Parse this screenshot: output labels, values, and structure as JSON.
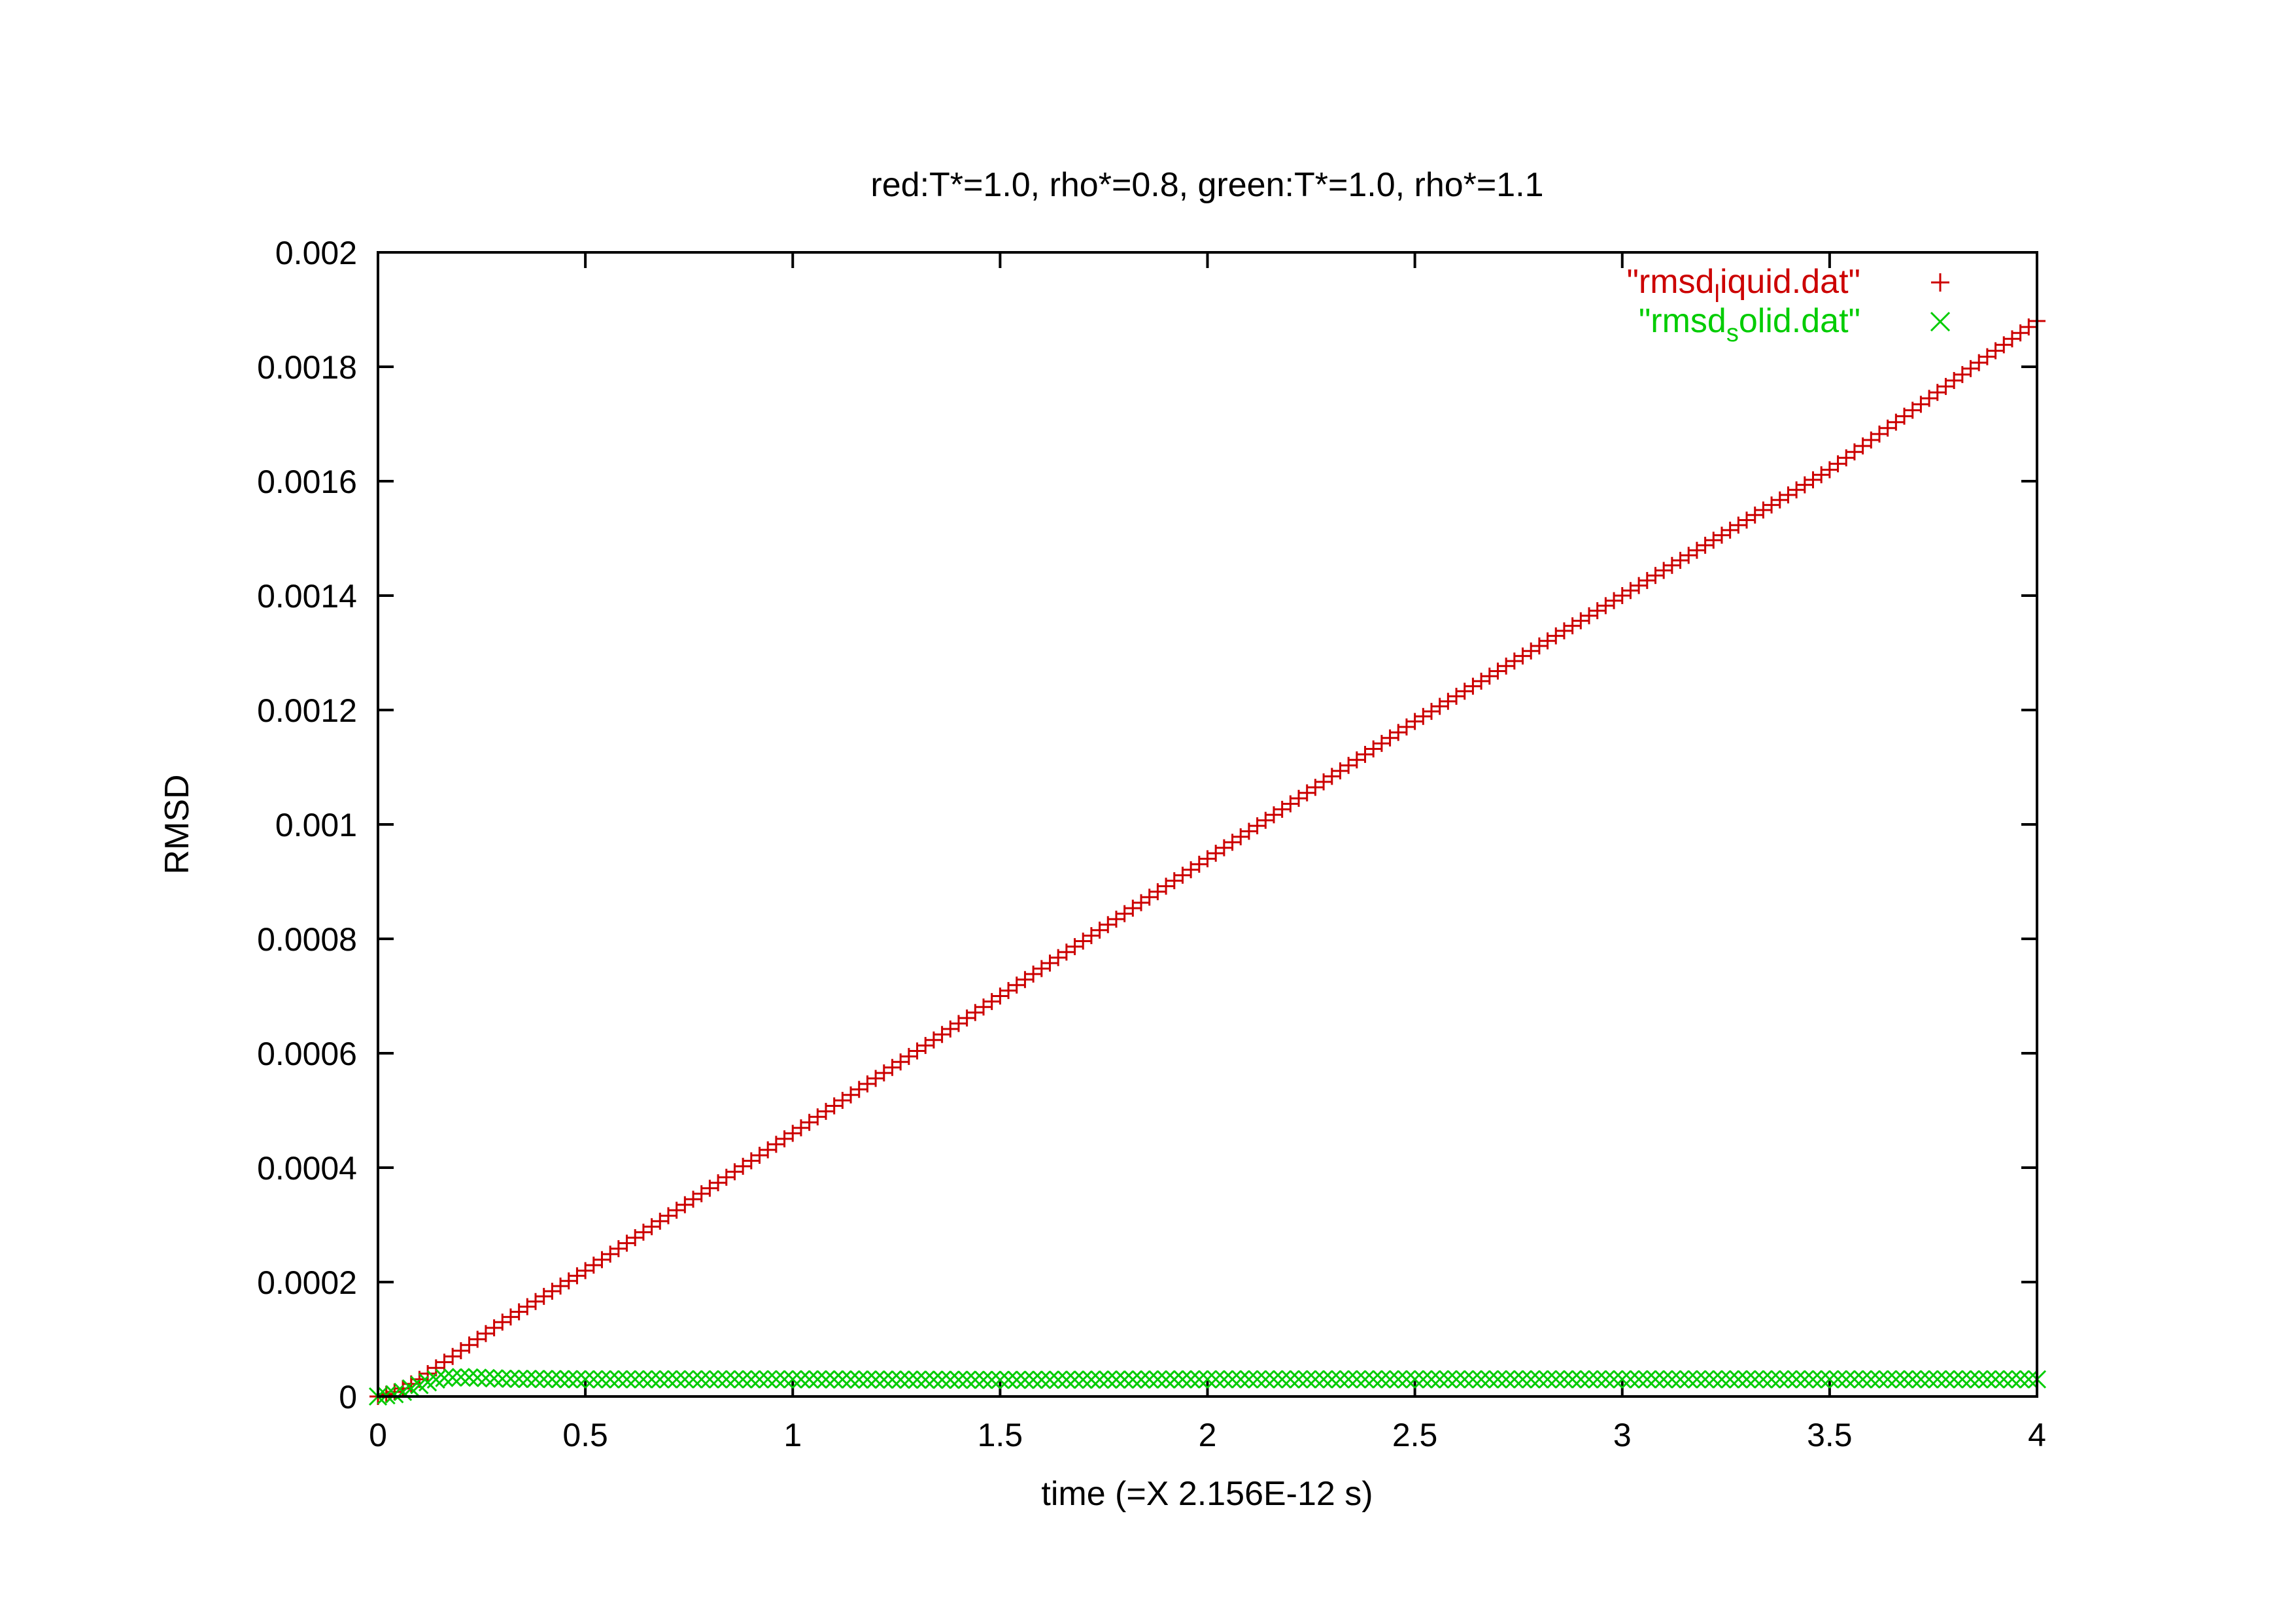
{
  "chart_data": {
    "type": "scatter",
    "title": "red:T*=1.0, rho*=0.8, green:T*=1.0, rho*=1.1",
    "xlabel": "time (=X 2.156E-12 s)",
    "ylabel": "RMSD",
    "xlim": [
      0,
      4
    ],
    "ylim": [
      0,
      0.002
    ],
    "x_ticks": [
      "0",
      "0.5",
      "1",
      "1.5",
      "2",
      "2.5",
      "3",
      "3.5",
      "4"
    ],
    "y_ticks": [
      "0",
      "0.0002",
      "0.0004",
      "0.0006",
      "0.0008",
      "0.001",
      "0.0012",
      "0.0014",
      "0.0016",
      "0.0018",
      "0.002"
    ],
    "grid": false,
    "legend_position": "top-right",
    "series": [
      {
        "name": "\"rmsd_liquid.dat\"",
        "legend_prefix": "\"rmsd",
        "legend_sub": "l",
        "legend_suffix": "iquid.dat\"",
        "color": "#cc0000",
        "marker": "plus",
        "x": [
          0,
          0.05,
          0.1,
          0.2,
          0.3,
          0.5,
          0.75,
          1.0,
          1.25,
          1.5,
          1.75,
          2.0,
          2.25,
          2.5,
          2.75,
          3.0,
          3.25,
          3.5,
          3.75,
          4.0
        ],
        "values": [
          0,
          1e-05,
          3e-05,
          8e-05,
          0.00013,
          0.00022,
          0.00034,
          0.00046,
          0.00058,
          0.0007,
          0.00082,
          0.00094,
          0.00106,
          0.00118,
          0.00129,
          0.0014,
          0.00151,
          0.00162,
          0.00175,
          0.00188
        ]
      },
      {
        "name": "\"rmsd_solid.dat\"",
        "legend_prefix": "\"rmsd",
        "legend_sub": "s",
        "legend_suffix": "olid.dat\"",
        "color": "#00cc00",
        "marker": "cross",
        "x": [
          0,
          0.05,
          0.1,
          0.15,
          0.2,
          0.3,
          0.5,
          1.0,
          1.5,
          2.0,
          2.5,
          3.0,
          3.5,
          4.0
        ],
        "values": [
          0,
          5e-06,
          2e-05,
          3.2e-05,
          3.4e-05,
          3.1e-05,
          3e-05,
          3e-05,
          2.9e-05,
          3e-05,
          3e-05,
          3e-05,
          3e-05,
          3e-05
        ]
      }
    ]
  }
}
